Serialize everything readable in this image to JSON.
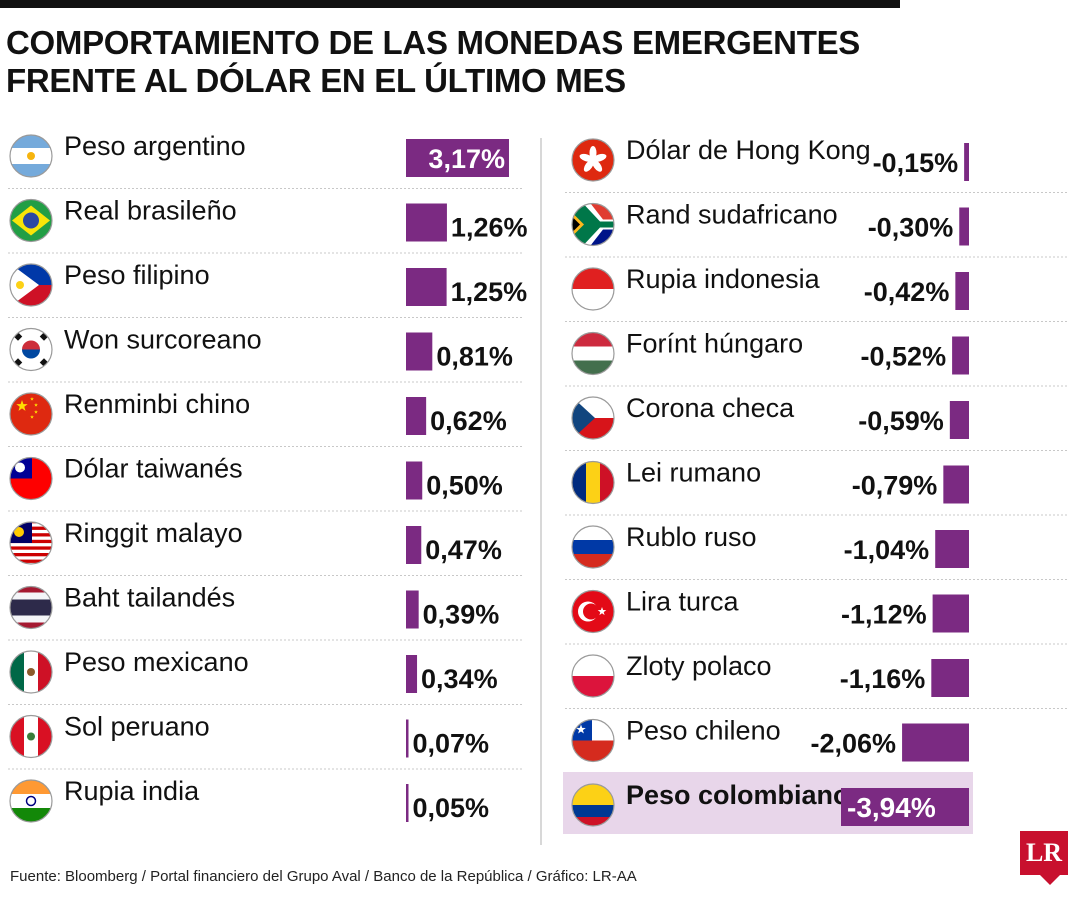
{
  "header": {
    "title_line1": "COMPORTAMIENTO DE LAS MONEDAS EMERGENTES",
    "title_line2": "FRENTE AL DÓLAR EN EL ÚLTIMO MES"
  },
  "colors": {
    "bar": "#7b2a82",
    "highlight_bg": "#e8d6ea",
    "divider": "#cccccc"
  },
  "chart_data": {
    "type": "bar",
    "orientation": "horizontal",
    "unit": "%",
    "groups": [
      {
        "categories": [
          "Peso argentino",
          "Real brasileño",
          "Peso filipino",
          "Won surcoreano",
          "Renminbi chino",
          "Dólar taiwanés",
          "Ringgit malayo",
          "Baht tailandés",
          "Peso mexicano",
          "Sol peruano",
          "Rupia india"
        ],
        "values": [
          3.17,
          1.26,
          1.25,
          0.81,
          0.62,
          0.5,
          0.47,
          0.39,
          0.34,
          0.07,
          0.05
        ],
        "labels": [
          "3,17%",
          "1,26%",
          "1,25%",
          "0,81%",
          "0,62%",
          "0,50%",
          "0,47%",
          "0,39%",
          "0,34%",
          "0,07%",
          "0,05%"
        ],
        "flags": [
          "argentina-flag-icon",
          "brazil-flag-icon",
          "philippines-flag-icon",
          "south-korea-flag-icon",
          "china-flag-icon",
          "taiwan-flag-icon",
          "malaysia-flag-icon",
          "thailand-flag-icon",
          "mexico-flag-icon",
          "peru-flag-icon",
          "india-flag-icon"
        ]
      },
      {
        "categories": [
          "Dólar de Hong Kong",
          "Rand sudafricano",
          "Rupia indonesia",
          "Forínt húngaro",
          "Corona checa",
          "Lei rumano",
          "Rublo ruso",
          "Lira turca",
          "Zloty polaco",
          "Peso chileno",
          "Peso colombiano"
        ],
        "values": [
          -0.15,
          -0.3,
          -0.42,
          -0.52,
          -0.59,
          -0.79,
          -1.04,
          -1.12,
          -1.16,
          -2.06,
          -3.94
        ],
        "labels": [
          "-0,15%",
          "-0,30%",
          "-0,42%",
          "-0,52%",
          "-0,59%",
          "-0,79%",
          "-1,04%",
          "-1,12%",
          "-1,16%",
          "-2,06%",
          "-3,94%"
        ],
        "flags": [
          "hong-kong-flag-icon",
          "south-africa-flag-icon",
          "indonesia-flag-icon",
          "hungary-flag-icon",
          "czech-flag-icon",
          "romania-flag-icon",
          "russia-flag-icon",
          "turkey-flag-icon",
          "poland-flag-icon",
          "chile-flag-icon",
          "colombia-flag-icon"
        ],
        "highlight": "Peso colombiano"
      }
    ]
  },
  "footer": {
    "source": "Fuente: Bloomberg / Portal financiero del Grupo Aval / Banco de la República  / Gráfico: LR-AA"
  },
  "logo": {
    "text": "LR"
  }
}
